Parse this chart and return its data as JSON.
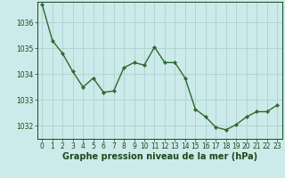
{
  "x": [
    0,
    1,
    2,
    3,
    4,
    5,
    6,
    7,
    8,
    9,
    10,
    11,
    12,
    13,
    14,
    15,
    16,
    17,
    18,
    19,
    20,
    21,
    22,
    23
  ],
  "y": [
    1036.7,
    1035.3,
    1034.8,
    1034.1,
    1033.5,
    1033.85,
    1033.3,
    1033.35,
    1034.25,
    1034.45,
    1034.35,
    1035.05,
    1034.45,
    1034.45,
    1033.85,
    1032.65,
    1032.35,
    1031.95,
    1031.85,
    1032.05,
    1032.35,
    1032.55,
    1032.55,
    1032.8
  ],
  "line_color": "#2d6a2d",
  "marker": "D",
  "marker_size": 2.2,
  "line_width": 1.0,
  "bg_color": "#cceaea",
  "grid_color": "#b0d4d4",
  "tick_color": "#1a4a1a",
  "xlabel": "Graphe pression niveau de la mer (hPa)",
  "xlabel_fontsize": 7.0,
  "xlabel_color": "#1a4a1a",
  "xlabel_bold": true,
  "ylim": [
    1031.5,
    1036.8
  ],
  "yticks": [
    1032,
    1033,
    1034,
    1035,
    1036
  ],
  "xlim": [
    -0.5,
    23.5
  ],
  "xticks": [
    0,
    1,
    2,
    3,
    4,
    5,
    6,
    7,
    8,
    9,
    10,
    11,
    12,
    13,
    14,
    15,
    16,
    17,
    18,
    19,
    20,
    21,
    22,
    23
  ],
  "tick_fontsize": 5.5,
  "ytick_fontsize": 5.5
}
